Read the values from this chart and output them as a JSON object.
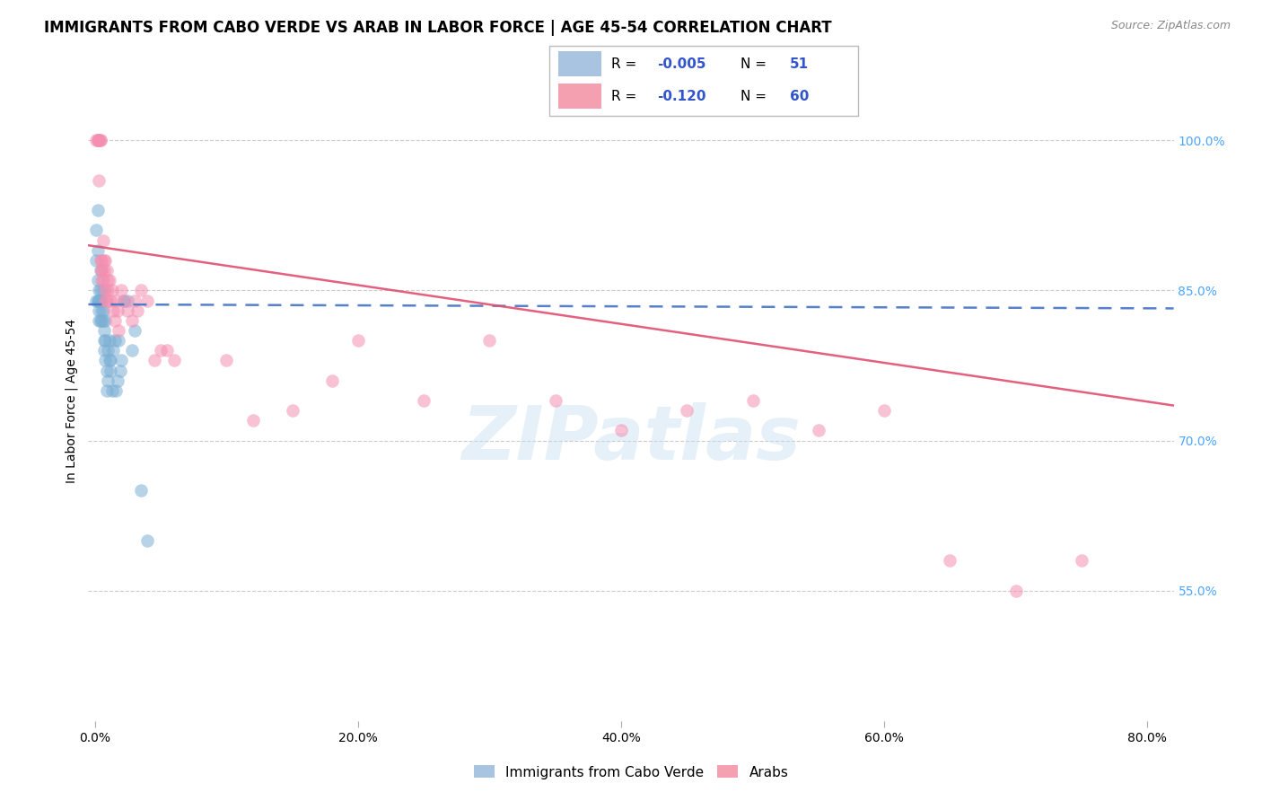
{
  "title": "IMMIGRANTS FROM CABO VERDE VS ARAB IN LABOR FORCE | AGE 45-54 CORRELATION CHART",
  "source": "Source: ZipAtlas.com",
  "ylabel": "In Labor Force | Age 45-54",
  "xlabel_ticks": [
    "0.0%",
    "20.0%",
    "40.0%",
    "60.0%",
    "80.0%"
  ],
  "xlabel_vals": [
    0.0,
    0.2,
    0.4,
    0.6,
    0.8
  ],
  "ylabel_ticks": [
    "55.0%",
    "70.0%",
    "85.0%",
    "100.0%"
  ],
  "ylabel_vals": [
    0.55,
    0.7,
    0.85,
    1.0
  ],
  "ylim": [
    0.42,
    1.06
  ],
  "xlim": [
    -0.005,
    0.82
  ],
  "cabo_verde_color": "#7bafd4",
  "arab_color": "#f48fb1",
  "cabo_verde_line_color": "#4472c4",
  "arab_line_color": "#e05070",
  "watermark": "ZIPatlas",
  "grid_color": "#cccccc",
  "title_fontsize": 12,
  "axis_tick_fontsize": 10,
  "ylabel_fontsize": 10,
  "right_tick_color": "#4da6ff",
  "legend_box_color_cabo": "#a8c4e0",
  "legend_box_color_arab": "#f4a0b0",
  "cabo_verde_x": [
    0.001,
    0.001,
    0.001,
    0.002,
    0.002,
    0.002,
    0.002,
    0.003,
    0.003,
    0.003,
    0.003,
    0.003,
    0.004,
    0.004,
    0.004,
    0.004,
    0.005,
    0.005,
    0.005,
    0.005,
    0.006,
    0.006,
    0.006,
    0.007,
    0.007,
    0.007,
    0.008,
    0.008,
    0.008,
    0.009,
    0.009,
    0.01,
    0.01,
    0.011,
    0.011,
    0.012,
    0.012,
    0.013,
    0.014,
    0.015,
    0.016,
    0.017,
    0.018,
    0.019,
    0.02,
    0.022,
    0.025,
    0.028,
    0.03,
    0.035,
    0.04
  ],
  "cabo_verde_y": [
    0.91,
    0.88,
    0.84,
    0.93,
    0.89,
    0.86,
    0.84,
    0.85,
    0.84,
    0.84,
    0.83,
    0.82,
    0.87,
    0.85,
    0.84,
    0.82,
    0.84,
    0.83,
    0.84,
    0.82,
    0.83,
    0.85,
    0.82,
    0.8,
    0.79,
    0.81,
    0.82,
    0.8,
    0.78,
    0.77,
    0.75,
    0.79,
    0.76,
    0.8,
    0.78,
    0.77,
    0.78,
    0.75,
    0.79,
    0.8,
    0.75,
    0.76,
    0.8,
    0.77,
    0.78,
    0.84,
    0.84,
    0.79,
    0.81,
    0.65,
    0.6
  ],
  "arab_x": [
    0.001,
    0.002,
    0.002,
    0.003,
    0.003,
    0.003,
    0.004,
    0.004,
    0.004,
    0.005,
    0.005,
    0.005,
    0.005,
    0.006,
    0.006,
    0.007,
    0.007,
    0.008,
    0.008,
    0.008,
    0.009,
    0.009,
    0.01,
    0.01,
    0.011,
    0.012,
    0.013,
    0.014,
    0.015,
    0.016,
    0.017,
    0.018,
    0.02,
    0.022,
    0.025,
    0.028,
    0.03,
    0.032,
    0.035,
    0.04,
    0.045,
    0.05,
    0.055,
    0.06,
    0.1,
    0.12,
    0.15,
    0.18,
    0.2,
    0.25,
    0.3,
    0.35,
    0.4,
    0.45,
    0.5,
    0.55,
    0.6,
    0.65,
    0.7,
    0.75
  ],
  "arab_y": [
    1.0,
    1.0,
    1.0,
    1.0,
    1.0,
    0.96,
    1.0,
    1.0,
    0.88,
    0.88,
    0.87,
    0.87,
    0.86,
    0.86,
    0.9,
    0.88,
    0.87,
    0.88,
    0.84,
    0.85,
    0.87,
    0.84,
    0.86,
    0.85,
    0.86,
    0.84,
    0.85,
    0.83,
    0.82,
    0.84,
    0.83,
    0.81,
    0.85,
    0.84,
    0.83,
    0.82,
    0.84,
    0.83,
    0.85,
    0.84,
    0.78,
    0.79,
    0.79,
    0.78,
    0.78,
    0.72,
    0.73,
    0.76,
    0.8,
    0.74,
    0.8,
    0.74,
    0.71,
    0.73,
    0.74,
    0.71,
    0.73,
    0.58,
    0.55,
    0.58
  ],
  "cv_trend_x0": -0.005,
  "cv_trend_x1": 0.82,
  "cv_trend_y0": 0.836,
  "cv_trend_y1": 0.832,
  "ar_trend_x0": -0.005,
  "ar_trend_x1": 0.82,
  "ar_trend_y0": 0.895,
  "ar_trend_y1": 0.735
}
